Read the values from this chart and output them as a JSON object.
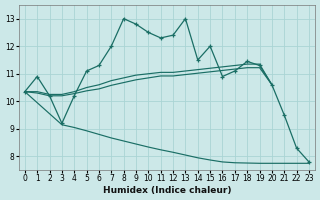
{
  "xlabel": "Humidex (Indice chaleur)",
  "bg_color": "#cce8e8",
  "grid_color": "#aad4d4",
  "line_color": "#1a6e65",
  "ylim": [
    7.5,
    13.5
  ],
  "yticks": [
    8,
    9,
    10,
    11,
    12,
    13
  ],
  "xticks": [
    0,
    1,
    2,
    3,
    4,
    5,
    6,
    7,
    8,
    9,
    10,
    11,
    12,
    13,
    14,
    15,
    16,
    17,
    18,
    19,
    20,
    21,
    22,
    23
  ],
  "curve_main_x": [
    0,
    1,
    2,
    3,
    4,
    5,
    6,
    7,
    8,
    9,
    10,
    11,
    12,
    13,
    14,
    15,
    16,
    17,
    18,
    19,
    20,
    21,
    22,
    23
  ],
  "curve_main_y": [
    10.35,
    10.9,
    10.2,
    9.2,
    10.2,
    11.1,
    11.3,
    12.0,
    13.0,
    12.8,
    12.5,
    12.3,
    12.4,
    13.0,
    11.5,
    12.0,
    10.9,
    11.1,
    11.45,
    11.3,
    10.6,
    9.5,
    8.3,
    7.8
  ],
  "curve_upper_x": [
    0,
    1,
    2,
    3,
    4,
    5,
    6,
    7,
    8,
    9,
    10,
    11,
    12,
    13,
    14,
    15,
    16,
    17,
    18,
    19,
    20
  ],
  "curve_upper_y": [
    10.35,
    10.35,
    10.25,
    10.25,
    10.35,
    10.5,
    10.6,
    10.75,
    10.85,
    10.95,
    11.0,
    11.05,
    11.05,
    11.1,
    11.15,
    11.2,
    11.25,
    11.3,
    11.35,
    11.35,
    10.6
  ],
  "curve_lower_x": [
    0,
    1,
    2,
    3,
    4,
    5,
    6,
    7,
    8,
    9,
    10,
    11,
    12,
    13,
    14,
    15,
    16,
    17,
    18,
    19,
    20
  ],
  "curve_lower_y": [
    10.35,
    10.3,
    10.2,
    10.2,
    10.28,
    10.38,
    10.45,
    10.58,
    10.68,
    10.78,
    10.85,
    10.92,
    10.92,
    10.97,
    11.02,
    11.07,
    11.12,
    11.17,
    11.22,
    11.22,
    10.6
  ],
  "curve_bot_x": [
    0,
    3,
    4,
    5,
    6,
    7,
    8,
    9,
    10,
    11,
    12,
    13,
    14,
    15,
    16,
    17,
    18,
    19,
    20,
    23
  ],
  "curve_bot_y": [
    10.35,
    9.15,
    9.05,
    8.93,
    8.8,
    8.67,
    8.56,
    8.45,
    8.34,
    8.24,
    8.15,
    8.05,
    7.95,
    7.87,
    7.8,
    7.77,
    7.76,
    7.75,
    7.75,
    7.75
  ]
}
